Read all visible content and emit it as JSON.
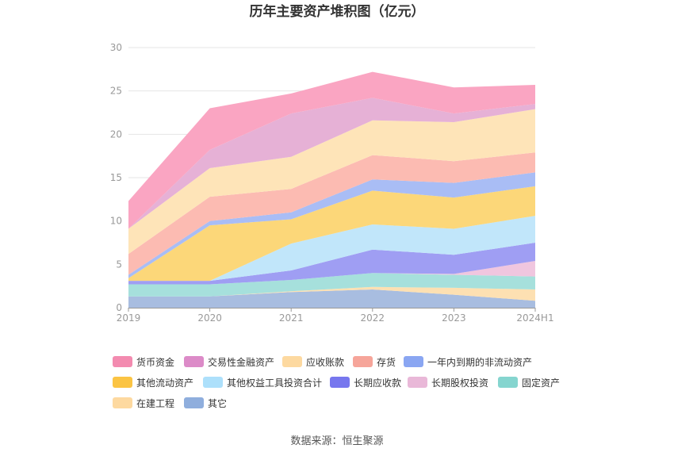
{
  "chart_data": {
    "type": "area",
    "stacked": true,
    "title": "历年主要资产堆积图（亿元）",
    "categories": [
      "2019",
      "2020",
      "2021",
      "2022",
      "2023",
      "2024H1"
    ],
    "ylim": [
      0,
      30
    ],
    "yticks": [
      0,
      5,
      10,
      15,
      20,
      25,
      30
    ],
    "grid": true,
    "legend_position": "bottom",
    "series": [
      {
        "name": "其它",
        "color": "#a8bde0",
        "values": [
          1.3,
          1.3,
          1.8,
          2.1,
          1.5,
          0.8
        ]
      },
      {
        "name": "在建工程",
        "color": "#fde0b2",
        "values": [
          0.0,
          0.0,
          0.1,
          0.3,
          0.8,
          1.3
        ]
      },
      {
        "name": "固定资产",
        "color": "#a6e0dc",
        "values": [
          1.4,
          1.4,
          1.3,
          1.6,
          1.5,
          1.5
        ]
      },
      {
        "name": "长期股权投资",
        "color": "#f0c6df",
        "values": [
          0.0,
          0.0,
          0.0,
          0.0,
          0.1,
          1.8
        ]
      },
      {
        "name": "长期应收款",
        "color": "#9f9ef3",
        "values": [
          0.4,
          0.4,
          1.1,
          2.7,
          2.2,
          2.1
        ]
      },
      {
        "name": "其他权益工具投资合计",
        "color": "#c1e6fa",
        "values": [
          0.0,
          0.0,
          3.1,
          2.9,
          3.0,
          3.1
        ]
      },
      {
        "name": "其他流动资产",
        "color": "#fcd779",
        "values": [
          0.3,
          6.4,
          2.8,
          3.9,
          3.6,
          3.4
        ]
      },
      {
        "name": "一年内到期的非流动资产",
        "color": "#a9bdf5",
        "values": [
          0.4,
          0.5,
          0.8,
          1.3,
          1.7,
          1.6
        ]
      },
      {
        "name": "存货",
        "color": "#fcbbb2",
        "values": [
          2.4,
          2.8,
          2.7,
          2.8,
          2.5,
          2.3
        ]
      },
      {
        "name": "应收账款",
        "color": "#fee4b8",
        "values": [
          2.9,
          3.3,
          3.7,
          4.0,
          4.5,
          5.0
        ]
      },
      {
        "name": "交易性金融资产",
        "color": "#e6b1d6",
        "values": [
          0.0,
          2.1,
          5.0,
          2.6,
          1.0,
          0.6
        ]
      },
      {
        "name": "货币资金",
        "color": "#faa5c2",
        "values": [
          3.2,
          4.8,
          2.3,
          3.0,
          3.0,
          2.2
        ]
      }
    ]
  },
  "legend": [
    {
      "name": "货币资金",
      "color": "#f38bb0"
    },
    {
      "name": "交易性金融资产",
      "color": "#dc8bc8"
    },
    {
      "name": "应收账款",
      "color": "#fdd9a0"
    },
    {
      "name": "存货",
      "color": "#f6a59a"
    },
    {
      "name": "一年内到期的非流动资产",
      "color": "#8aa6f2"
    },
    {
      "name": "其他流动资产",
      "color": "#fbc443"
    },
    {
      "name": "其他权益工具投资合计",
      "color": "#ade0fb"
    },
    {
      "name": "长期应收款",
      "color": "#7777ee"
    },
    {
      "name": "长期股权投资",
      "color": "#e9b8d8"
    },
    {
      "name": "固定资产",
      "color": "#85d5cf"
    },
    {
      "name": "在建工程",
      "color": "#fdd9a0"
    },
    {
      "name": "其它",
      "color": "#8faedd"
    }
  ],
  "source": "数据来源：恒生聚源"
}
